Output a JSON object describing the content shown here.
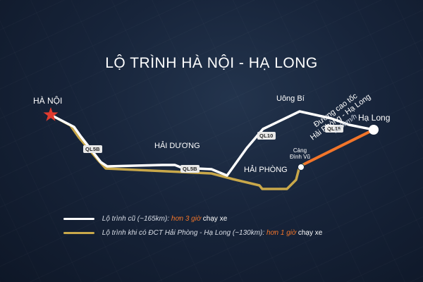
{
  "title": "LỘ TRÌNH HÀ NỘI - HẠ LONG",
  "colors": {
    "old_route": "#ffffff",
    "new_route": "#c9a84a",
    "expressway": "#f2752a",
    "start_marker": "#e03b2f",
    "background": "#17243a"
  },
  "places": {
    "ha_noi": "HÀ NỘI",
    "hai_duong": "HẢI DƯƠNG",
    "hai_phong": "HẢI PHÒNG",
    "uong_bi": "Uông Bí",
    "ha_long": "Hạ Long",
    "cang_dinh_vu_line1": "Cảng",
    "cang_dinh_vu_line2": "Đình Vũ"
  },
  "roads": {
    "ql5b_west": "QL5B",
    "ql5b_mid": "QL5B",
    "ql10": "QL10",
    "ql18": "QL18"
  },
  "expressway": {
    "line1": "Đường cao tốc",
    "line2": "Hải Phòng - Hạ Long",
    "speed": "100km/h"
  },
  "legend": {
    "old": {
      "text": "Lộ trình cũ (~165km): ",
      "highlight": "hơn 3 giờ",
      "suffix": " chạy xe"
    },
    "new": {
      "text": "Lộ trình khi có ĐCT Hải Phòng - Hạ Long (~130km): ",
      "highlight": "hơn 1 giờ",
      "suffix": " chạy xe"
    }
  }
}
